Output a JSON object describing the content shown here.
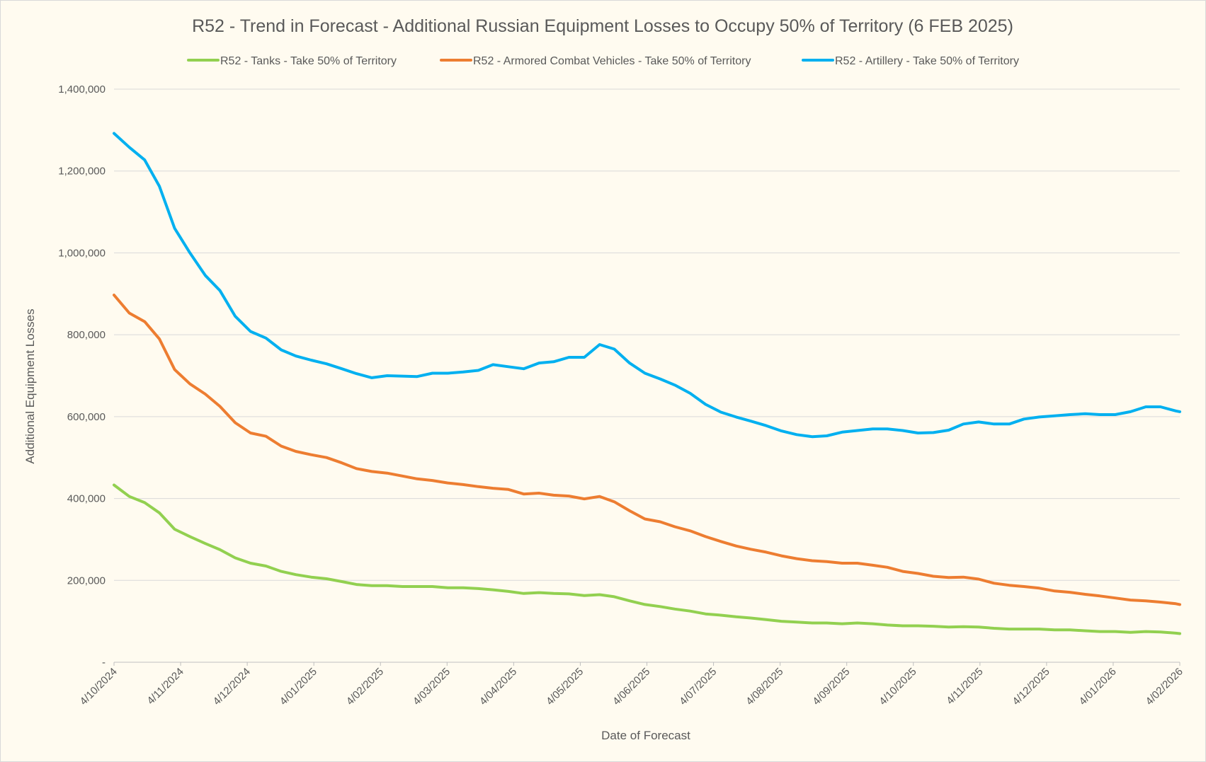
{
  "chart_data": {
    "type": "line",
    "title": "R52 - Trend in Forecast - Additional Russian Equipment Losses to Occupy 50% of Territory (6 FEB 2025)",
    "xlabel": "Date of Forecast",
    "ylabel": "Additional Equipment Losses",
    "ylim": [
      0,
      1400000
    ],
    "y_ticks": [
      "-",
      "200,000",
      "400,000",
      "600,000",
      "800,000",
      "1,000,000",
      "1,200,000",
      "1,400,000"
    ],
    "x_tick_labels": [
      "4/10/2024",
      "4/11/2024",
      "4/12/2024",
      "4/01/2025",
      "4/02/2025",
      "4/03/2025",
      "4/04/2025",
      "4/05/2025",
      "4/06/2025",
      "4/07/2025",
      "4/08/2025",
      "4/09/2025",
      "4/10/2025",
      "4/11/2025",
      "4/12/2025",
      "4/01/2026",
      "4/02/2026"
    ],
    "x_range": [
      0,
      16
    ],
    "grid": true,
    "legend_position": "top",
    "series": [
      {
        "name": "R52 - Tanks - Take 50% of Territory",
        "color": "#92d050",
        "x": [
          0,
          0.23,
          0.46,
          0.68,
          0.91,
          1.14,
          1.37,
          1.59,
          1.82,
          2.05,
          2.28,
          2.51,
          2.73,
          2.96,
          3.19,
          3.42,
          3.64,
          3.87,
          4.1,
          4.33,
          4.55,
          4.78,
          5.01,
          5.24,
          5.47,
          5.69,
          5.92,
          6.15,
          6.38,
          6.6,
          6.83,
          7.06,
          7.29,
          7.51,
          7.74,
          7.97,
          8.2,
          8.42,
          8.65,
          8.88,
          9.11,
          9.34,
          9.56,
          9.79,
          10.02,
          10.25,
          10.48,
          10.7,
          10.93,
          11.16,
          11.39,
          11.61,
          11.84,
          12.07,
          12.3,
          12.53,
          12.75,
          12.98,
          13.21,
          13.44,
          13.66,
          13.89,
          14.12,
          14.35,
          14.58,
          14.8,
          15.03,
          15.26,
          15.49,
          15.71,
          15.94,
          16
        ],
        "values": [
          433000,
          405000,
          390000,
          365000,
          325000,
          307000,
          290000,
          275000,
          255000,
          242000,
          235000,
          222000,
          214000,
          208000,
          204000,
          197000,
          190000,
          187000,
          187000,
          185000,
          185000,
          185000,
          182000,
          182000,
          180000,
          177000,
          173000,
          168000,
          170000,
          168000,
          167000,
          163000,
          165000,
          160000,
          150000,
          141000,
          136000,
          130000,
          125000,
          118000,
          115000,
          111000,
          108000,
          104000,
          100000,
          98000,
          96000,
          96000,
          94000,
          96000,
          94000,
          91000,
          89000,
          89000,
          88000,
          86000,
          87000,
          86000,
          83000,
          81000,
          81000,
          81000,
          79000,
          79000,
          77000,
          75000,
          75000,
          73000,
          75000,
          74000,
          71000,
          70000
        ]
      },
      {
        "name": "R52 - Armored Combat Vehicles - Take 50% of Territory",
        "color": "#ed7d31",
        "x": [
          0,
          0.23,
          0.46,
          0.68,
          0.91,
          1.14,
          1.37,
          1.59,
          1.82,
          2.05,
          2.28,
          2.51,
          2.73,
          2.96,
          3.19,
          3.42,
          3.64,
          3.87,
          4.1,
          4.33,
          4.55,
          4.78,
          5.01,
          5.24,
          5.47,
          5.69,
          5.92,
          6.15,
          6.38,
          6.6,
          6.83,
          7.06,
          7.29,
          7.51,
          7.74,
          7.97,
          8.2,
          8.42,
          8.65,
          8.88,
          9.11,
          9.34,
          9.56,
          9.79,
          10.02,
          10.25,
          10.48,
          10.7,
          10.93,
          11.16,
          11.39,
          11.61,
          11.84,
          12.07,
          12.3,
          12.53,
          12.75,
          12.98,
          13.21,
          13.44,
          13.66,
          13.89,
          14.12,
          14.35,
          14.58,
          14.8,
          15.03,
          15.26,
          15.49,
          15.71,
          15.94,
          16
        ],
        "values": [
          897000,
          853000,
          832000,
          790000,
          715000,
          680000,
          655000,
          625000,
          585000,
          560000,
          552000,
          528000,
          515000,
          507000,
          500000,
          487000,
          473000,
          466000,
          462000,
          455000,
          448000,
          444000,
          438000,
          434000,
          429000,
          425000,
          422000,
          411000,
          413000,
          408000,
          406000,
          399000,
          405000,
          392000,
          370000,
          350000,
          343000,
          331000,
          321000,
          307000,
          295000,
          284000,
          276000,
          269000,
          260000,
          253000,
          248000,
          246000,
          242000,
          242000,
          237000,
          232000,
          222000,
          217000,
          210000,
          207000,
          208000,
          203000,
          193000,
          188000,
          185000,
          181000,
          174000,
          171000,
          166000,
          162000,
          157000,
          152000,
          150000,
          147000,
          143000,
          141000
        ]
      },
      {
        "name": "R52 - Artillery - Take 50% of Territory",
        "color": "#00b0f0",
        "x": [
          0,
          0.23,
          0.46,
          0.68,
          0.91,
          1.14,
          1.37,
          1.59,
          1.82,
          2.05,
          2.28,
          2.51,
          2.73,
          2.96,
          3.19,
          3.42,
          3.64,
          3.87,
          4.1,
          4.33,
          4.55,
          4.78,
          5.01,
          5.24,
          5.47,
          5.69,
          5.92,
          6.15,
          6.38,
          6.6,
          6.83,
          7.06,
          7.29,
          7.51,
          7.74,
          7.97,
          8.2,
          8.42,
          8.65,
          8.88,
          9.11,
          9.34,
          9.56,
          9.79,
          10.02,
          10.25,
          10.48,
          10.7,
          10.93,
          11.16,
          11.39,
          11.61,
          11.84,
          12.07,
          12.3,
          12.53,
          12.75,
          12.98,
          13.21,
          13.44,
          13.66,
          13.89,
          14.12,
          14.35,
          14.58,
          14.8,
          15.03,
          15.26,
          15.49,
          15.71,
          15.94,
          16
        ],
        "values": [
          1292000,
          1258000,
          1227000,
          1163000,
          1060000,
          1000000,
          945000,
          908000,
          845000,
          808000,
          792000,
          763000,
          748000,
          738000,
          729000,
          717000,
          705000,
          695000,
          700000,
          699000,
          698000,
          706000,
          706000,
          709000,
          713000,
          727000,
          722000,
          717000,
          731000,
          734000,
          745000,
          745000,
          776000,
          765000,
          731000,
          706000,
          692000,
          677000,
          657000,
          630000,
          611000,
          599000,
          589000,
          578000,
          565000,
          556000,
          551000,
          553000,
          562000,
          566000,
          570000,
          570000,
          566000,
          560000,
          561000,
          567000,
          582000,
          587000,
          582000,
          582000,
          594000,
          599000,
          602000,
          605000,
          607000,
          605000,
          605000,
          612000,
          624000,
          624000,
          614000,
          612000
        ]
      }
    ]
  }
}
